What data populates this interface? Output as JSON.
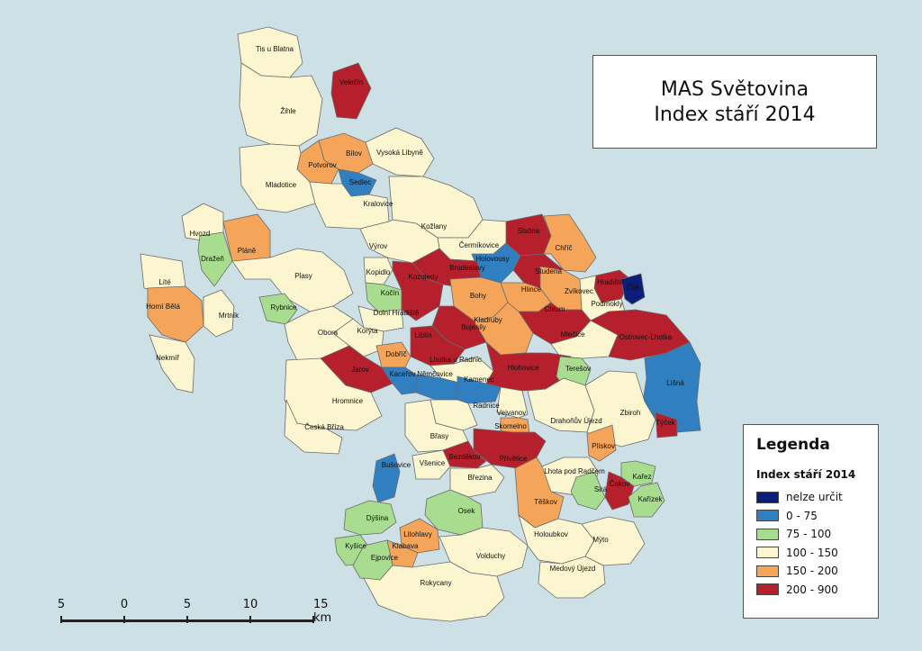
{
  "title": {
    "line1": "MAS Světovina",
    "line2": "Index stáří 2014"
  },
  "legend": {
    "heading": "Legenda",
    "subheading": "Index stáří 2014",
    "classes": [
      {
        "label": "nelze určit",
        "color": "#0b1f7a"
      },
      {
        "label": "0 - 75",
        "color": "#2f7fc1"
      },
      {
        "label": "75 - 100",
        "color": "#a8dc8e"
      },
      {
        "label": "100 - 150",
        "color": "#fbf6d0"
      },
      {
        "label": "150 - 200",
        "color": "#f4a55a"
      },
      {
        "label": "200 - 900",
        "color": "#b5202c"
      }
    ]
  },
  "scale": {
    "ticks": [
      "5",
      "0",
      "5",
      "10",
      "15 km"
    ]
  },
  "municipalities": [
    {
      "name": "Tis u Blatna",
      "cls": 3
    },
    {
      "name": "Žihle",
      "cls": 3
    },
    {
      "name": "Velečín",
      "cls": 5
    },
    {
      "name": "Bílov",
      "cls": 4
    },
    {
      "name": "Potvorov",
      "cls": 4
    },
    {
      "name": "Vysoká Libyně",
      "cls": 3
    },
    {
      "name": "Mladotice",
      "cls": 3
    },
    {
      "name": "Sedlec",
      "cls": 1
    },
    {
      "name": "Kralovice",
      "cls": 3
    },
    {
      "name": "Hvozd",
      "cls": 3
    },
    {
      "name": "Dražeň",
      "cls": 2
    },
    {
      "name": "Pláně",
      "cls": 4
    },
    {
      "name": "Kožlany",
      "cls": 3
    },
    {
      "name": "Slatina",
      "cls": 5
    },
    {
      "name": "Chříč",
      "cls": 4
    },
    {
      "name": "Čermíkovice",
      "cls": 3
    },
    {
      "name": "Holovousy",
      "cls": 1
    },
    {
      "name": "Výrov",
      "cls": 3
    },
    {
      "name": "Brodeslavy",
      "cls": 5
    },
    {
      "name": "Studená",
      "cls": 5
    },
    {
      "name": "Hradiště",
      "cls": 5
    },
    {
      "name": "Čilá",
      "cls": 0
    },
    {
      "name": "Líté",
      "cls": 3
    },
    {
      "name": "Kopidlo",
      "cls": 3
    },
    {
      "name": "Plasy",
      "cls": 3
    },
    {
      "name": "Kočín",
      "cls": 2
    },
    {
      "name": "Kozojedy",
      "cls": 5
    },
    {
      "name": "Bohy",
      "cls": 4
    },
    {
      "name": "Hlince",
      "cls": 4
    },
    {
      "name": "Zvíkovec",
      "cls": 4
    },
    {
      "name": "Podmokly",
      "cls": 3
    },
    {
      "name": "Horní Bělá",
      "cls": 4
    },
    {
      "name": "Rybnice",
      "cls": 2
    },
    {
      "name": "Mrtník",
      "cls": 3
    },
    {
      "name": "Dolní Hradiště",
      "cls": 3
    },
    {
      "name": "Chlum",
      "cls": 5
    },
    {
      "name": "Kladruby",
      "cls": 4
    },
    {
      "name": "Obora",
      "cls": 3
    },
    {
      "name": "Korýta",
      "cls": 3
    },
    {
      "name": "Bujesily",
      "cls": 5
    },
    {
      "name": "Mlečice",
      "cls": 3
    },
    {
      "name": "Ostrovec-Lhotka",
      "cls": 5
    },
    {
      "name": "Liblín",
      "cls": 5
    },
    {
      "name": "Nekmíř",
      "cls": 3
    },
    {
      "name": "Dobříč",
      "cls": 4
    },
    {
      "name": "Jarov",
      "cls": 5
    },
    {
      "name": "Kaceřov",
      "cls": 1
    },
    {
      "name": "Lhotka u Radnic",
      "cls": 3
    },
    {
      "name": "Hlohovice",
      "cls": 5
    },
    {
      "name": "Terešov",
      "cls": 2
    },
    {
      "name": "Němčovice",
      "cls": 1
    },
    {
      "name": "Kamenec",
      "cls": 1
    },
    {
      "name": "Líšná",
      "cls": 1
    },
    {
      "name": "Hromnice",
      "cls": 3
    },
    {
      "name": "Radnice",
      "cls": 3
    },
    {
      "name": "Vejvanov",
      "cls": 3
    },
    {
      "name": "Drahoňův Újezd",
      "cls": 3
    },
    {
      "name": "Zbiroh",
      "cls": 3
    },
    {
      "name": "Týček",
      "cls": 5
    },
    {
      "name": "Česká Bříza",
      "cls": 3
    },
    {
      "name": "Skomelno",
      "cls": 4
    },
    {
      "name": "Břasy",
      "cls": 3
    },
    {
      "name": "Přívětice",
      "cls": 5
    },
    {
      "name": "Plískov",
      "cls": 4
    },
    {
      "name": "Bezděkov",
      "cls": 5
    },
    {
      "name": "Všenice",
      "cls": 3
    },
    {
      "name": "Lhota pod Radčem",
      "cls": 3
    },
    {
      "name": "Kařez",
      "cls": 2
    },
    {
      "name": "Čekov",
      "cls": 5
    },
    {
      "name": "Bušovice",
      "cls": 1
    },
    {
      "name": "Březina",
      "cls": 3
    },
    {
      "name": "Sirá",
      "cls": 2
    },
    {
      "name": "Kařízek",
      "cls": 2
    },
    {
      "name": "Těškov",
      "cls": 4
    },
    {
      "name": "Dýšina",
      "cls": 2
    },
    {
      "name": "Osek",
      "cls": 2
    },
    {
      "name": "Kyšice",
      "cls": 2
    },
    {
      "name": "Litohlavy",
      "cls": 4
    },
    {
      "name": "Klabava",
      "cls": 4
    },
    {
      "name": "Volduchy",
      "cls": 3
    },
    {
      "name": "Holoubkov",
      "cls": 3
    },
    {
      "name": "Mýto",
      "cls": 3
    },
    {
      "name": "Ejpovice",
      "cls": 2
    },
    {
      "name": "Medový Újezd",
      "cls": 3
    },
    {
      "name": "Rokycany",
      "cls": 3
    }
  ]
}
